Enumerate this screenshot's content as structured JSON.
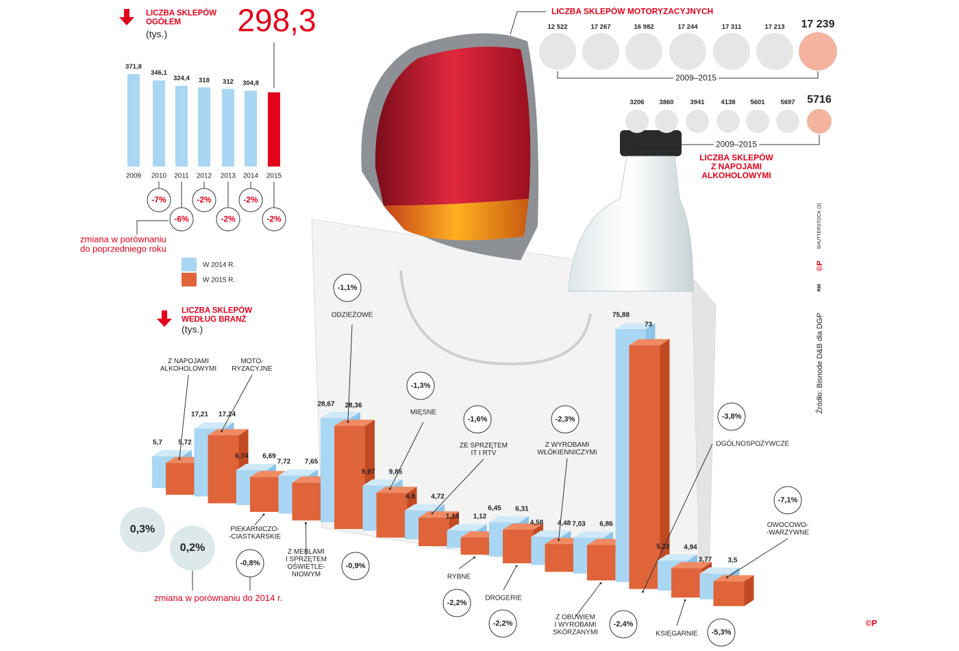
{
  "chart_data": [
    {
      "type": "bar",
      "title": "LICZBA SKLEPÓW\nOGÓŁEM",
      "unit": "(tys.)",
      "categories": [
        "2009",
        "2010",
        "2011",
        "2012",
        "2013",
        "2014",
        "2015"
      ],
      "values": [
        371.8,
        346.1,
        324.4,
        318,
        312,
        304.8,
        298.3
      ],
      "value_labels": [
        "371,8",
        "346,1",
        "324,4",
        "318",
        "312",
        "304,8",
        "298,3"
      ],
      "color": "#a9d6f2",
      "highlight_color": "#e3001b",
      "changes": [
        -7,
        -6,
        -2,
        -2,
        -2,
        -2
      ],
      "change_labels": [
        "-7%",
        "-6%",
        "-2%",
        "-2%",
        "-2%",
        "-2%"
      ],
      "change_caption": "zmiana w porównaniu\ndo poprzedniego roku"
    },
    {
      "type": "dots",
      "title": "LICZBA SKLEPÓW MOTORYZACYJNYCH",
      "period": "2009–2015",
      "values": [
        12522,
        17267,
        16982,
        17244,
        17311,
        17213,
        17239
      ],
      "value_labels": [
        "12 522",
        "17 267",
        "16 982",
        "17 244",
        "17 311",
        "17 213",
        "17 239"
      ],
      "color": "#e6e6e6",
      "highlight_color": "#f3b39f"
    },
    {
      "type": "dots",
      "title": "LICZBA SKLEPÓW\nZ NAPOJAMI\nALKOHOLOWYMI",
      "period": "2009–2015",
      "values": [
        3206,
        3860,
        3941,
        4138,
        5601,
        5697,
        5716
      ],
      "color": "#e6e6e6",
      "highlight_color": "#f3b39f"
    },
    {
      "type": "bar3d",
      "title": "LICZBA SKLEPÓW\nWEDŁUG BRANŻ",
      "unit": "(tys.)",
      "categories": [
        "Z NAPOJAMI\nALKOHOLOWYMI",
        "MOTO-\nRYZACYJNE",
        "PIEKARNICZO-\n-CIASTKARSKIE",
        "Z MEBLAMI\nI SPRZĘTEM\nOŚWIETLE-\nNIOWYM",
        "ODZIEŻOWE",
        "MIĘSNE",
        "ZE SPRZĘTEM\nIT I RTV",
        "RYBNE",
        "DROGERIE",
        "Z WYROBAMI\nWŁÓKIENNICZYMI",
        "Z OBUWIEM\nI WYROBAMI\nSKÓRZANYMI",
        "OGÓLNOSPOŻYWCZE",
        "KSIĘGARNIE",
        "OWOCOWO-\n-WARZYWNE"
      ],
      "series": [
        {
          "name": "W 2014 R.",
          "color": "#a9d6f2",
          "values": [
            5.7,
            17.21,
            6.74,
            7.72,
            28.67,
            9.97,
            4.8,
            1.14,
            6.45,
            4.58,
            7.03,
            75.88,
            5.22,
            3.77
          ],
          "value_labels": [
            "5,7",
            "17,21",
            "6,74",
            "7,72",
            "28,67",
            "9,97",
            "4,8",
            "1,14",
            "6,45",
            "4,58",
            "7,03",
            "75,88",
            "5,22",
            "3,77"
          ]
        },
        {
          "name": "W 2015 R.",
          "color": "#e0643a",
          "values": [
            5.72,
            17.24,
            6.69,
            7.65,
            28.36,
            9.85,
            4.72,
            1.12,
            6.31,
            4.48,
            6.86,
            73,
            4.94,
            3.5
          ],
          "value_labels": [
            "5,72",
            "17,24",
            "6,69",
            "7,65",
            "28,36",
            "9,85",
            "4,72",
            "1,12",
            "6,31",
            "4,48",
            "6,86",
            "73",
            "4,94",
            "3,5"
          ]
        }
      ],
      "changes": [
        0.3,
        0.2,
        -0.8,
        -0.9,
        -1.1,
        -1.3,
        -1.6,
        -2.2,
        -2.2,
        -2.3,
        -2.4,
        -3.8,
        -5.3,
        -7.1
      ],
      "change_labels": [
        "0,3%",
        "0,2%",
        "-0,8%",
        "-0,9%",
        "-1,1%",
        "-1,3%",
        "-1,6%",
        "-2,2%",
        "-2,2%",
        "-2,3%",
        "-2,4%",
        "-3,8%",
        "-5,3%",
        "-7,1%"
      ],
      "change_caption": "zmiana w porównaniu do 2014 r."
    }
  ],
  "credits": {
    "source": "Źródło: Bisnode D&B dla DGP",
    "photo": "SHUTTERSTOCK (3)",
    "rm": "RM",
    "logo": "©P"
  }
}
